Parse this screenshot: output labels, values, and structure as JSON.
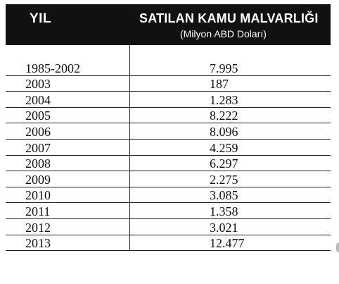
{
  "table": {
    "header": {
      "year": "YIL",
      "title": "SATILAN KAMU MALVARLIĞI",
      "subtitle": "(Milyon ABD Doları)"
    },
    "rows": [
      {
        "year": "1985-2002",
        "value": "7.995"
      },
      {
        "year": "2003",
        "value": "187"
      },
      {
        "year": "2004",
        "value": "1.283"
      },
      {
        "year": "2005",
        "value": "8.222"
      },
      {
        "year": "2006",
        "value": "8.096"
      },
      {
        "year": "2007",
        "value": "4.259"
      },
      {
        "year": "2008",
        "value": "6.297"
      },
      {
        "year": "2009",
        "value": "2.275"
      },
      {
        "year": "2010",
        "value": "3.085"
      },
      {
        "year": "2011",
        "value": "1.358"
      },
      {
        "year": "2012",
        "value": "3.021"
      },
      {
        "year": "2013",
        "value": "12.477"
      }
    ]
  }
}
